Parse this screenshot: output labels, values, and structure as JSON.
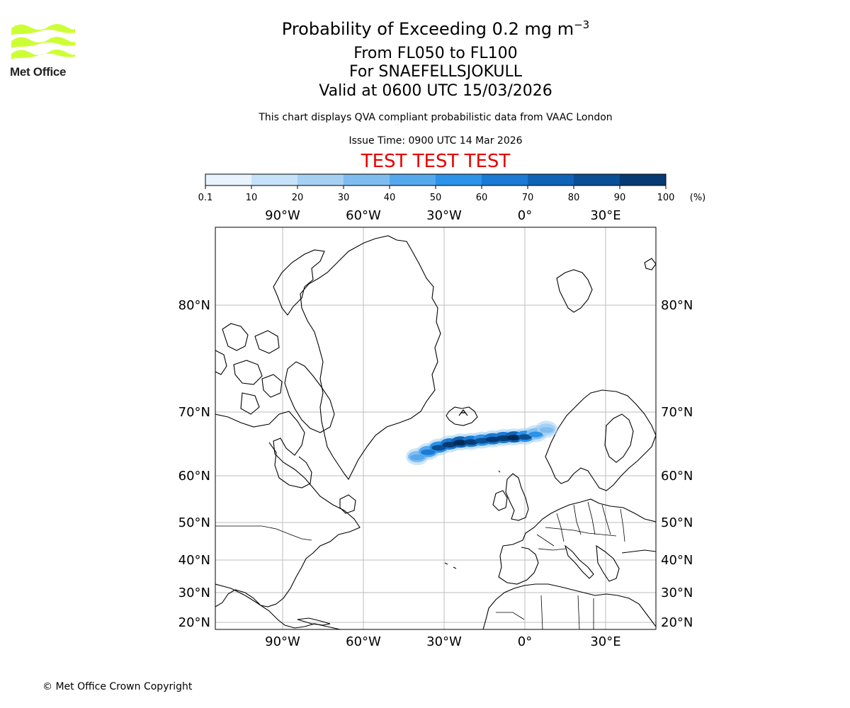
{
  "logo": {
    "text": "Met Office",
    "color": "#ccff33"
  },
  "title": {
    "main": "Probability of Exceeding 0.2 mg m",
    "superscript": "−3"
  },
  "subtitle": {
    "line1": "From FL050 to FL100",
    "line2": "For SNAEFELLSJOKULL",
    "line3": "Valid at 0600 UTC 15/03/2026"
  },
  "description": "This chart displays QVA compliant probabilistic data from VAAC London",
  "issue_time": "Issue Time: 0900 UTC 14 Mar 2026",
  "test_banner": "TEST TEST TEST",
  "test_color": "#e60000",
  "colorbar": {
    "ticks": [
      "0.1",
      "10",
      "20",
      "30",
      "40",
      "50",
      "60",
      "70",
      "80",
      "90",
      "100"
    ],
    "unit": "(%)",
    "colors": [
      "#e8f3fd",
      "#c6e2f8",
      "#a4d0f4",
      "#7fbdf0",
      "#55a8ec",
      "#2b93e8",
      "#1a7ad4",
      "#0f63b6",
      "#0a4f94",
      "#063a72",
      "#022a55"
    ]
  },
  "map": {
    "lon_labels": [
      "90°W",
      "60°W",
      "30°W",
      "0°",
      "30°E"
    ],
    "lat_labels": [
      "80°N",
      "70°N",
      "60°N",
      "50°N",
      "40°N",
      "30°N",
      "20°N"
    ]
  },
  "chart_data": {
    "type": "map",
    "title": "Probability of Exceeding 0.2 mg m−3",
    "quantity": "probability (%)",
    "volcano": "SNAEFELLSJOKULL",
    "flight_levels": [
      "FL050",
      "FL100"
    ],
    "valid_time": "0600 UTC 15/03/2026",
    "lon_gridlines": [
      -90,
      -60,
      -30,
      0,
      30
    ],
    "lat_gridlines": [
      80,
      70,
      60,
      50,
      40,
      30,
      20
    ],
    "plume": {
      "description": "Ash plume extending eastward from Iceland toward Norway",
      "points_lon_lat_prob": [
        [
          -40,
          63.0,
          30
        ],
        [
          -36,
          63.8,
          50
        ],
        [
          -32,
          64.5,
          70
        ],
        [
          -28,
          65.0,
          85
        ],
        [
          -24,
          65.3,
          90
        ],
        [
          -20,
          65.4,
          80
        ],
        [
          -16,
          65.6,
          70
        ],
        [
          -12,
          65.8,
          80
        ],
        [
          -8,
          66.0,
          85
        ],
        [
          -4,
          66.1,
          90
        ],
        [
          0,
          66.2,
          70
        ],
        [
          4,
          66.6,
          40
        ],
        [
          8,
          67.3,
          20
        ]
      ]
    }
  },
  "copyright": "© Met Office Crown Copyright"
}
